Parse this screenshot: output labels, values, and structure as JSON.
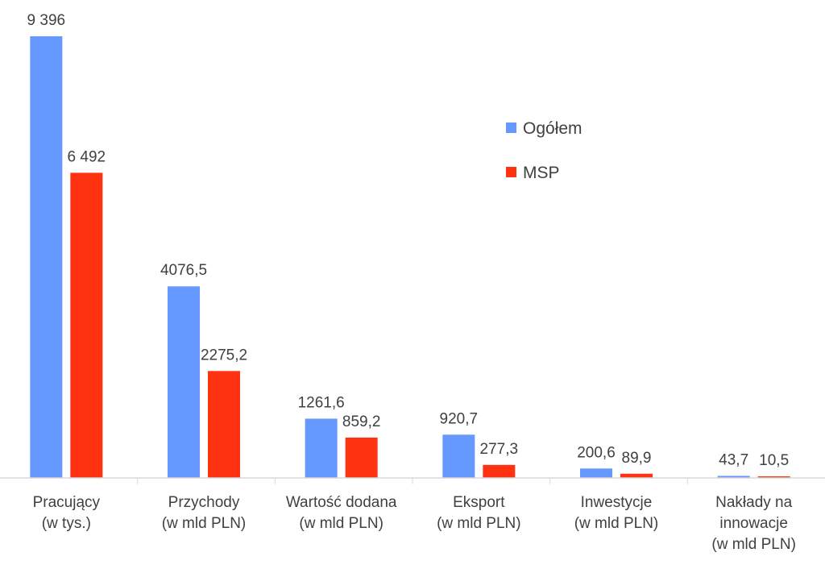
{
  "chart_data": {
    "type": "bar",
    "categories": [
      [
        "Pracujący",
        "(w tys.)"
      ],
      [
        "Przychody",
        "(w mld PLN)"
      ],
      [
        "Wartość dodana",
        "(w mld PLN)"
      ],
      [
        "Eksport",
        "(w mld PLN)"
      ],
      [
        "Inwestycje",
        "(w mld PLN)"
      ],
      [
        "Nakłady na",
        "innowacje",
        "(w mld PLN)"
      ]
    ],
    "series": [
      {
        "name": "Ogółem",
        "color": "#6699ff",
        "values": [
          9396,
          4076.5,
          1261.6,
          920.7,
          200.6,
          43.7
        ],
        "labels": [
          "9 396",
          "4076,5",
          "1261,6",
          "920,7",
          "200,6",
          "43,7"
        ]
      },
      {
        "name": "MSP",
        "color": "#ff3311",
        "values": [
          6492,
          2275.2,
          859.2,
          277.3,
          89.9,
          10.5
        ],
        "labels": [
          "6 492",
          "2275,2",
          "859,2",
          "277,3",
          "89,9",
          "10,5"
        ]
      }
    ],
    "legend": {
      "position": "top-right"
    },
    "grid": false,
    "title": "",
    "xlabel": "",
    "ylabel": ""
  }
}
